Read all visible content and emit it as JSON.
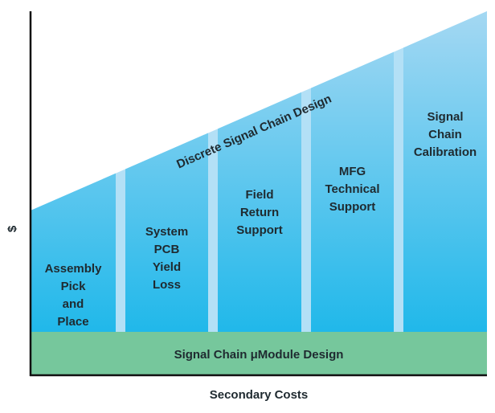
{
  "diagram": {
    "y_axis_label": "$",
    "x_axis_label": "Secondary Costs",
    "diagonal_label": "Discrete Signal Chain Design",
    "base_label": "Signal Chain μModule Design",
    "columns": [
      {
        "lines": [
          "Assembly",
          "Pick",
          "and",
          "Place"
        ]
      },
      {
        "lines": [
          "System",
          "PCB",
          "Yield",
          "Loss"
        ]
      },
      {
        "lines": [
          "Field",
          "Return",
          "Support"
        ]
      },
      {
        "lines": [
          "MFG",
          "Technical",
          "Support"
        ]
      },
      {
        "lines": [
          "Signal",
          "Chain",
          "Calibration"
        ]
      }
    ],
    "colors": {
      "column_top": "#a9d9f3",
      "column_bottom": "#20b8ea",
      "gap": "#b3e0f6",
      "base": "#76c79c",
      "axis": "#111111",
      "text": "#1f2a30"
    }
  }
}
